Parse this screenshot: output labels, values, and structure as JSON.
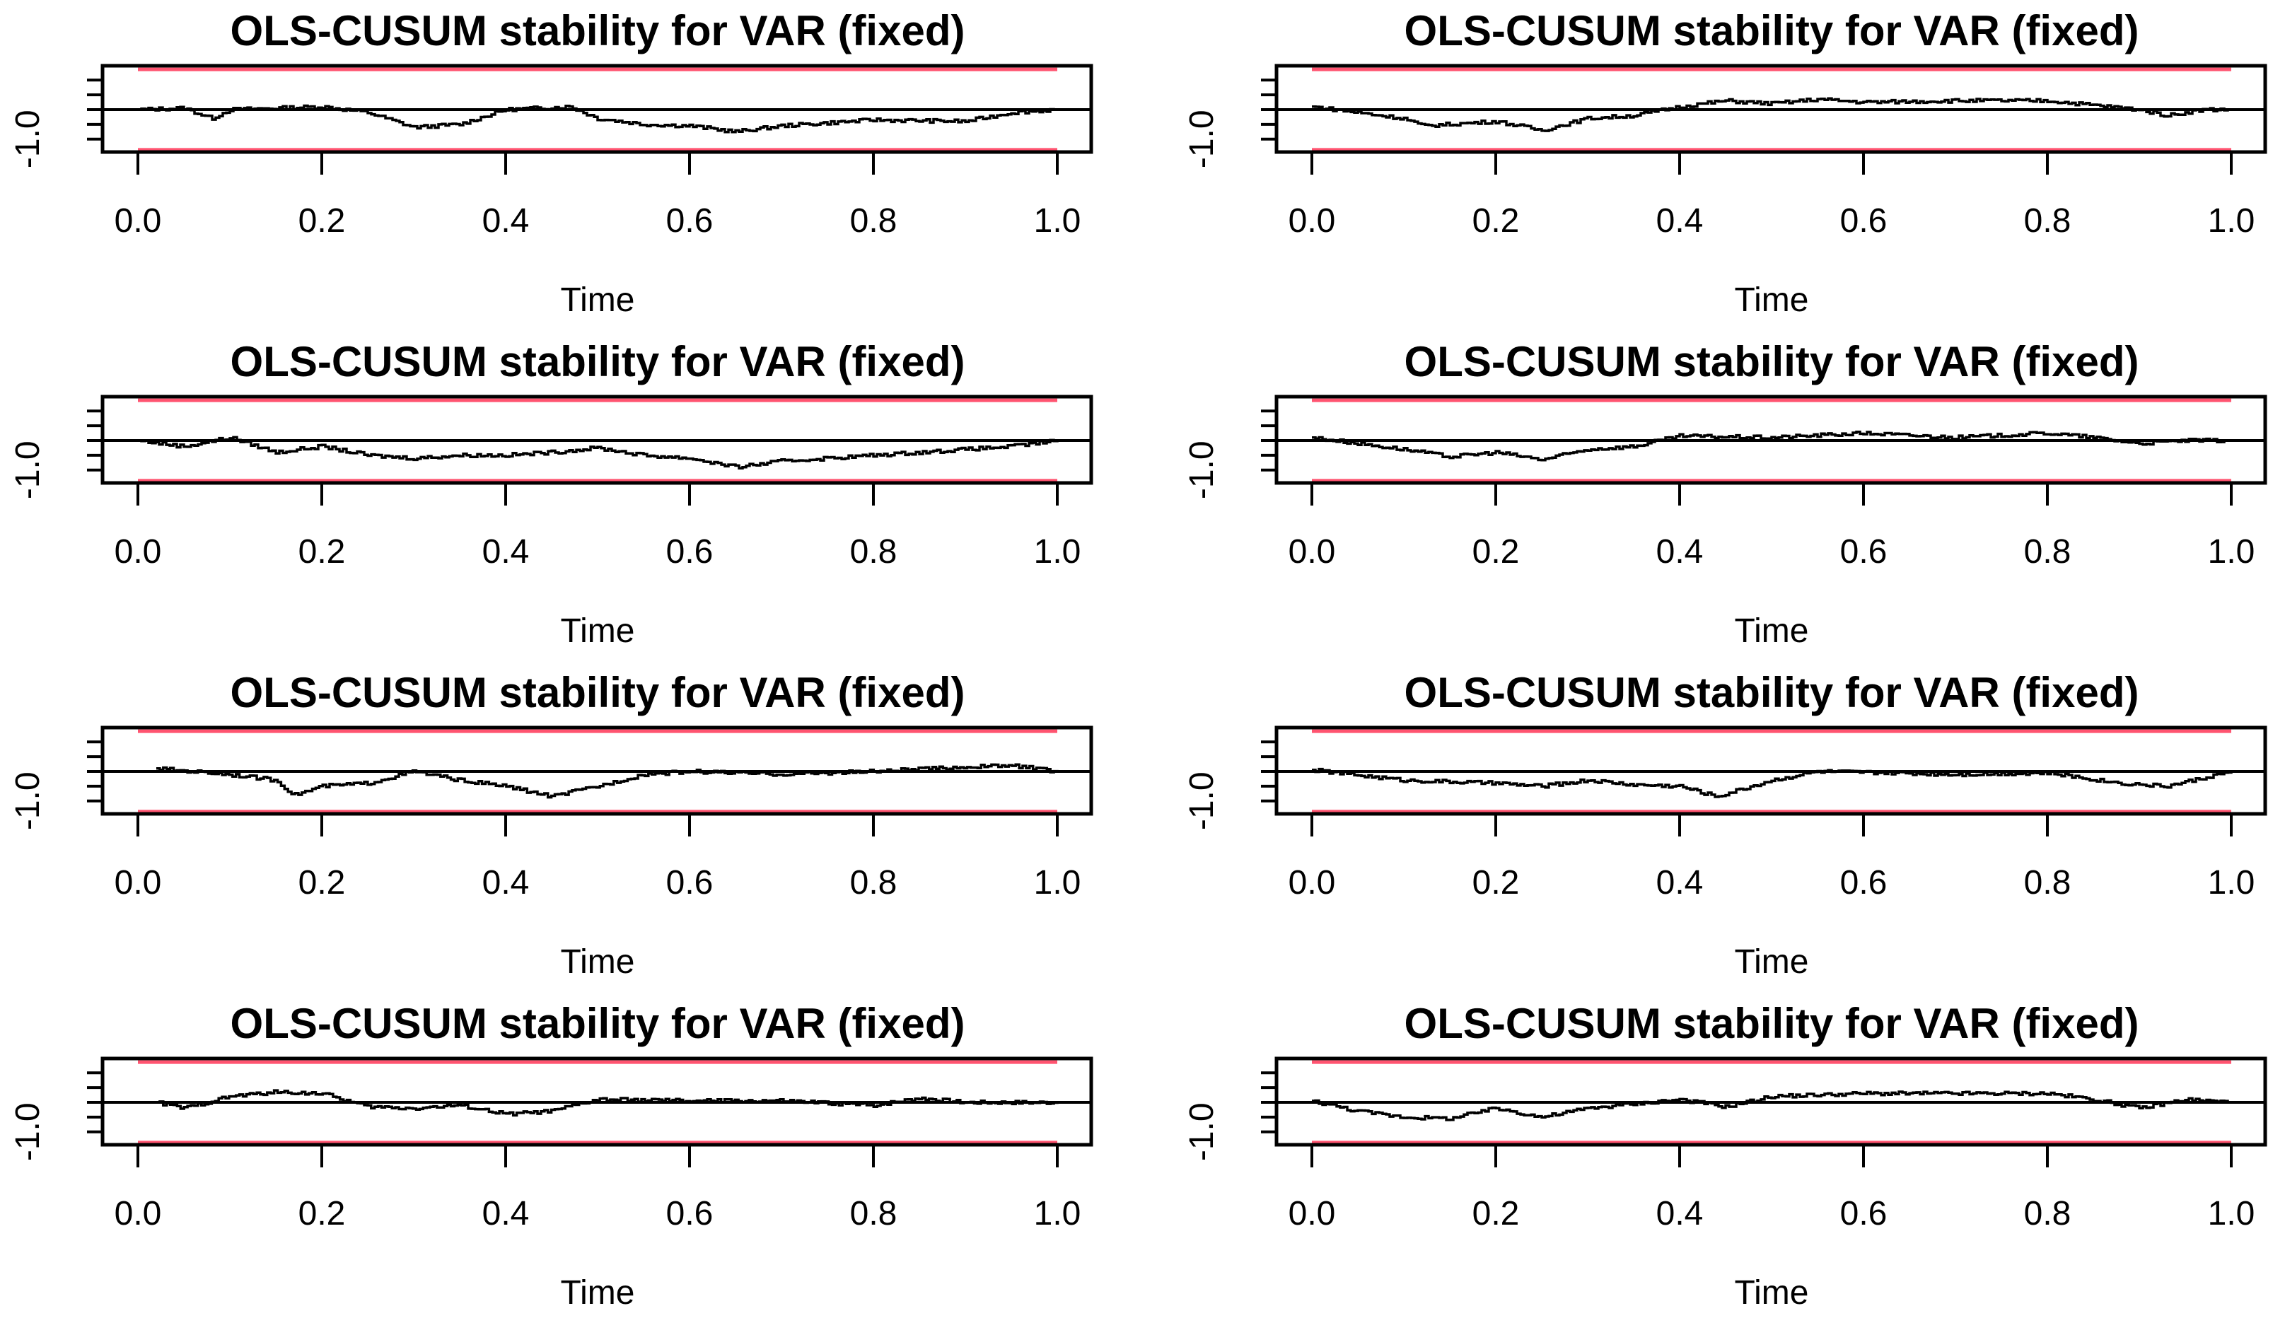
{
  "colors": {
    "boundary": "#ff5470",
    "line": "#000000"
  },
  "chart_data": [
    {
      "type": "line",
      "title": "OLS-CUSUM stability for VAR (fixed)",
      "xlabel": "Time",
      "ylabel": "",
      "xlim": [
        0,
        1
      ],
      "ylim": [
        -1.5,
        1.5
      ],
      "x_ticks": [
        "0.0",
        "0.2",
        "0.4",
        "0.6",
        "0.8",
        "1.0"
      ],
      "y_tick_labels": [
        "-1.0"
      ],
      "boundary": 1.36,
      "series": {
        "x": [
          0,
          0.05,
          0.08,
          0.1,
          0.2,
          0.25,
          0.3,
          0.35,
          0.4,
          0.47,
          0.5,
          0.55,
          0.6,
          0.65,
          0.7,
          0.8,
          0.9,
          0.95,
          1
        ],
        "y": [
          0,
          0.05,
          -0.3,
          0,
          0.1,
          -0.1,
          -0.6,
          -0.5,
          0,
          0.1,
          -0.3,
          -0.5,
          -0.55,
          -0.75,
          -0.55,
          -0.35,
          -0.4,
          -0.1,
          0
        ]
      }
    },
    {
      "type": "line",
      "title": "OLS-CUSUM stability for VAR (fixed)",
      "xlabel": "Time",
      "ylabel": "",
      "xlim": [
        0,
        1
      ],
      "ylim": [
        -1.5,
        1.5
      ],
      "x_ticks": [
        "0.0",
        "0.2",
        "0.4",
        "0.6",
        "0.8",
        "1.0"
      ],
      "y_tick_labels": [
        "-1.0"
      ],
      "boundary": 1.36,
      "series": {
        "x": [
          0,
          0.1,
          0.12,
          0.2,
          0.25,
          0.3,
          0.35,
          0.4,
          0.45,
          0.5,
          0.55,
          0.6,
          0.7,
          0.8,
          0.85,
          0.9,
          0.93,
          0.97,
          1
        ],
        "y": [
          0.1,
          -0.3,
          -0.55,
          -0.4,
          -0.7,
          -0.3,
          -0.2,
          0.1,
          0.3,
          0.2,
          0.35,
          0.25,
          0.3,
          0.3,
          0.15,
          0,
          -0.2,
          0,
          0
        ]
      }
    },
    {
      "type": "line",
      "title": "OLS-CUSUM stability for VAR (fixed)",
      "xlabel": "Time",
      "ylabel": "",
      "xlim": [
        0,
        1
      ],
      "ylim": [
        -1.5,
        1.5
      ],
      "x_ticks": [
        "0.0",
        "0.2",
        "0.4",
        "0.6",
        "0.8",
        "1.0"
      ],
      "y_tick_labels": [
        "-1.0"
      ],
      "boundary": 1.36,
      "series": {
        "x": [
          0,
          0.05,
          0.1,
          0.15,
          0.2,
          0.25,
          0.3,
          0.35,
          0.4,
          0.45,
          0.5,
          0.55,
          0.6,
          0.65,
          0.7,
          0.8,
          0.9,
          0.95,
          1
        ],
        "y": [
          0,
          -0.2,
          0.1,
          -0.4,
          -0.2,
          -0.5,
          -0.6,
          -0.5,
          -0.5,
          -0.4,
          -0.25,
          -0.5,
          -0.6,
          -0.9,
          -0.7,
          -0.5,
          -0.3,
          -0.2,
          0
        ]
      }
    },
    {
      "type": "line",
      "title": "OLS-CUSUM stability for VAR (fixed)",
      "xlabel": "Time",
      "ylabel": "",
      "xlim": [
        0,
        1
      ],
      "ylim": [
        -1.5,
        1.5
      ],
      "x_ticks": [
        "0.0",
        "0.2",
        "0.4",
        "0.6",
        "0.8",
        "1.0"
      ],
      "y_tick_labels": [
        "-1.0"
      ],
      "boundary": 1.36,
      "series": {
        "x": [
          0,
          0.1,
          0.15,
          0.2,
          0.25,
          0.3,
          0.35,
          0.4,
          0.5,
          0.6,
          0.7,
          0.8,
          0.85,
          0.9,
          0.95,
          1
        ],
        "y": [
          0.1,
          -0.3,
          -0.55,
          -0.4,
          -0.65,
          -0.3,
          -0.2,
          0.15,
          0.1,
          0.25,
          0.1,
          0.25,
          0.1,
          -0.1,
          0,
          0
        ]
      }
    },
    {
      "type": "line",
      "title": "OLS-CUSUM stability for VAR (fixed)",
      "xlabel": "Time",
      "ylabel": "",
      "xlim": [
        0,
        1
      ],
      "ylim": [
        -1.5,
        1.5
      ],
      "x_ticks": [
        "0.0",
        "0.2",
        "0.4",
        "0.6",
        "0.8",
        "1.0"
      ],
      "y_tick_labels": [
        "-1.0"
      ],
      "boundary": 1.36,
      "series": {
        "x": [
          0.02,
          0.1,
          0.15,
          0.17,
          0.2,
          0.25,
          0.3,
          0.35,
          0.4,
          0.45,
          0.5,
          0.55,
          0.6,
          0.7,
          0.8,
          0.9,
          0.95,
          1
        ],
        "y": [
          0.1,
          -0.1,
          -0.3,
          -0.8,
          -0.5,
          -0.4,
          0,
          -0.3,
          -0.5,
          -0.85,
          -0.5,
          -0.1,
          0,
          -0.1,
          0,
          0.15,
          0.2,
          0
        ]
      }
    },
    {
      "type": "line",
      "title": "OLS-CUSUM stability for VAR (fixed)",
      "xlabel": "Time",
      "ylabel": "",
      "xlim": [
        0,
        1
      ],
      "ylim": [
        -1.5,
        1.5
      ],
      "x_ticks": [
        "0.0",
        "0.2",
        "0.4",
        "0.6",
        "0.8",
        "1.0"
      ],
      "y_tick_labels": [
        "-1.0"
      ],
      "boundary": 1.36,
      "series": {
        "x": [
          0,
          0.1,
          0.2,
          0.25,
          0.3,
          0.35,
          0.4,
          0.44,
          0.5,
          0.55,
          0.7,
          0.8,
          0.88,
          0.93,
          1
        ],
        "y": [
          0.05,
          -0.3,
          -0.4,
          -0.5,
          -0.3,
          -0.45,
          -0.5,
          -0.85,
          -0.3,
          0,
          -0.1,
          -0.05,
          -0.4,
          -0.5,
          0
        ]
      }
    },
    {
      "type": "line",
      "title": "OLS-CUSUM stability for VAR (fixed)",
      "xlabel": "Time",
      "ylabel": "",
      "xlim": [
        0,
        1
      ],
      "ylim": [
        -1.5,
        1.5
      ],
      "x_ticks": [
        "0.0",
        "0.2",
        "0.4",
        "0.6",
        "0.8",
        "1.0"
      ],
      "y_tick_labels": [
        "-1.0"
      ],
      "boundary": 1.36,
      "series": {
        "x": [
          0.02,
          0.05,
          0.1,
          0.15,
          0.2,
          0.25,
          0.3,
          0.35,
          0.4,
          0.45,
          0.5,
          0.6,
          0.7,
          0.8,
          0.85,
          0.9,
          1
        ],
        "y": [
          0,
          -0.2,
          0.2,
          0.35,
          0.3,
          -0.15,
          -0.2,
          -0.1,
          -0.4,
          -0.3,
          0.1,
          0.05,
          0.05,
          -0.1,
          0.15,
          0,
          0
        ]
      }
    },
    {
      "type": "line",
      "title": "OLS-CUSUM stability for VAR (fixed)",
      "xlabel": "Time",
      "ylabel": "",
      "xlim": [
        0,
        1
      ],
      "ylim": [
        -1.5,
        1.5
      ],
      "x_ticks": [
        "0.0",
        "0.2",
        "0.4",
        "0.6",
        "0.8",
        "1.0"
      ],
      "y_tick_labels": [
        "-1.0"
      ],
      "boundary": 1.36,
      "series": {
        "x": [
          0,
          0.05,
          0.1,
          0.15,
          0.2,
          0.25,
          0.3,
          0.35,
          0.4,
          0.45,
          0.5,
          0.6,
          0.7,
          0.8,
          0.85,
          0.9,
          0.95,
          1
        ],
        "y": [
          0.05,
          -0.3,
          -0.5,
          -0.55,
          -0.2,
          -0.5,
          -0.2,
          -0.05,
          0.1,
          -0.15,
          0.2,
          0.3,
          0.3,
          0.3,
          0.1,
          -0.2,
          0.1,
          0
        ]
      }
    }
  ]
}
